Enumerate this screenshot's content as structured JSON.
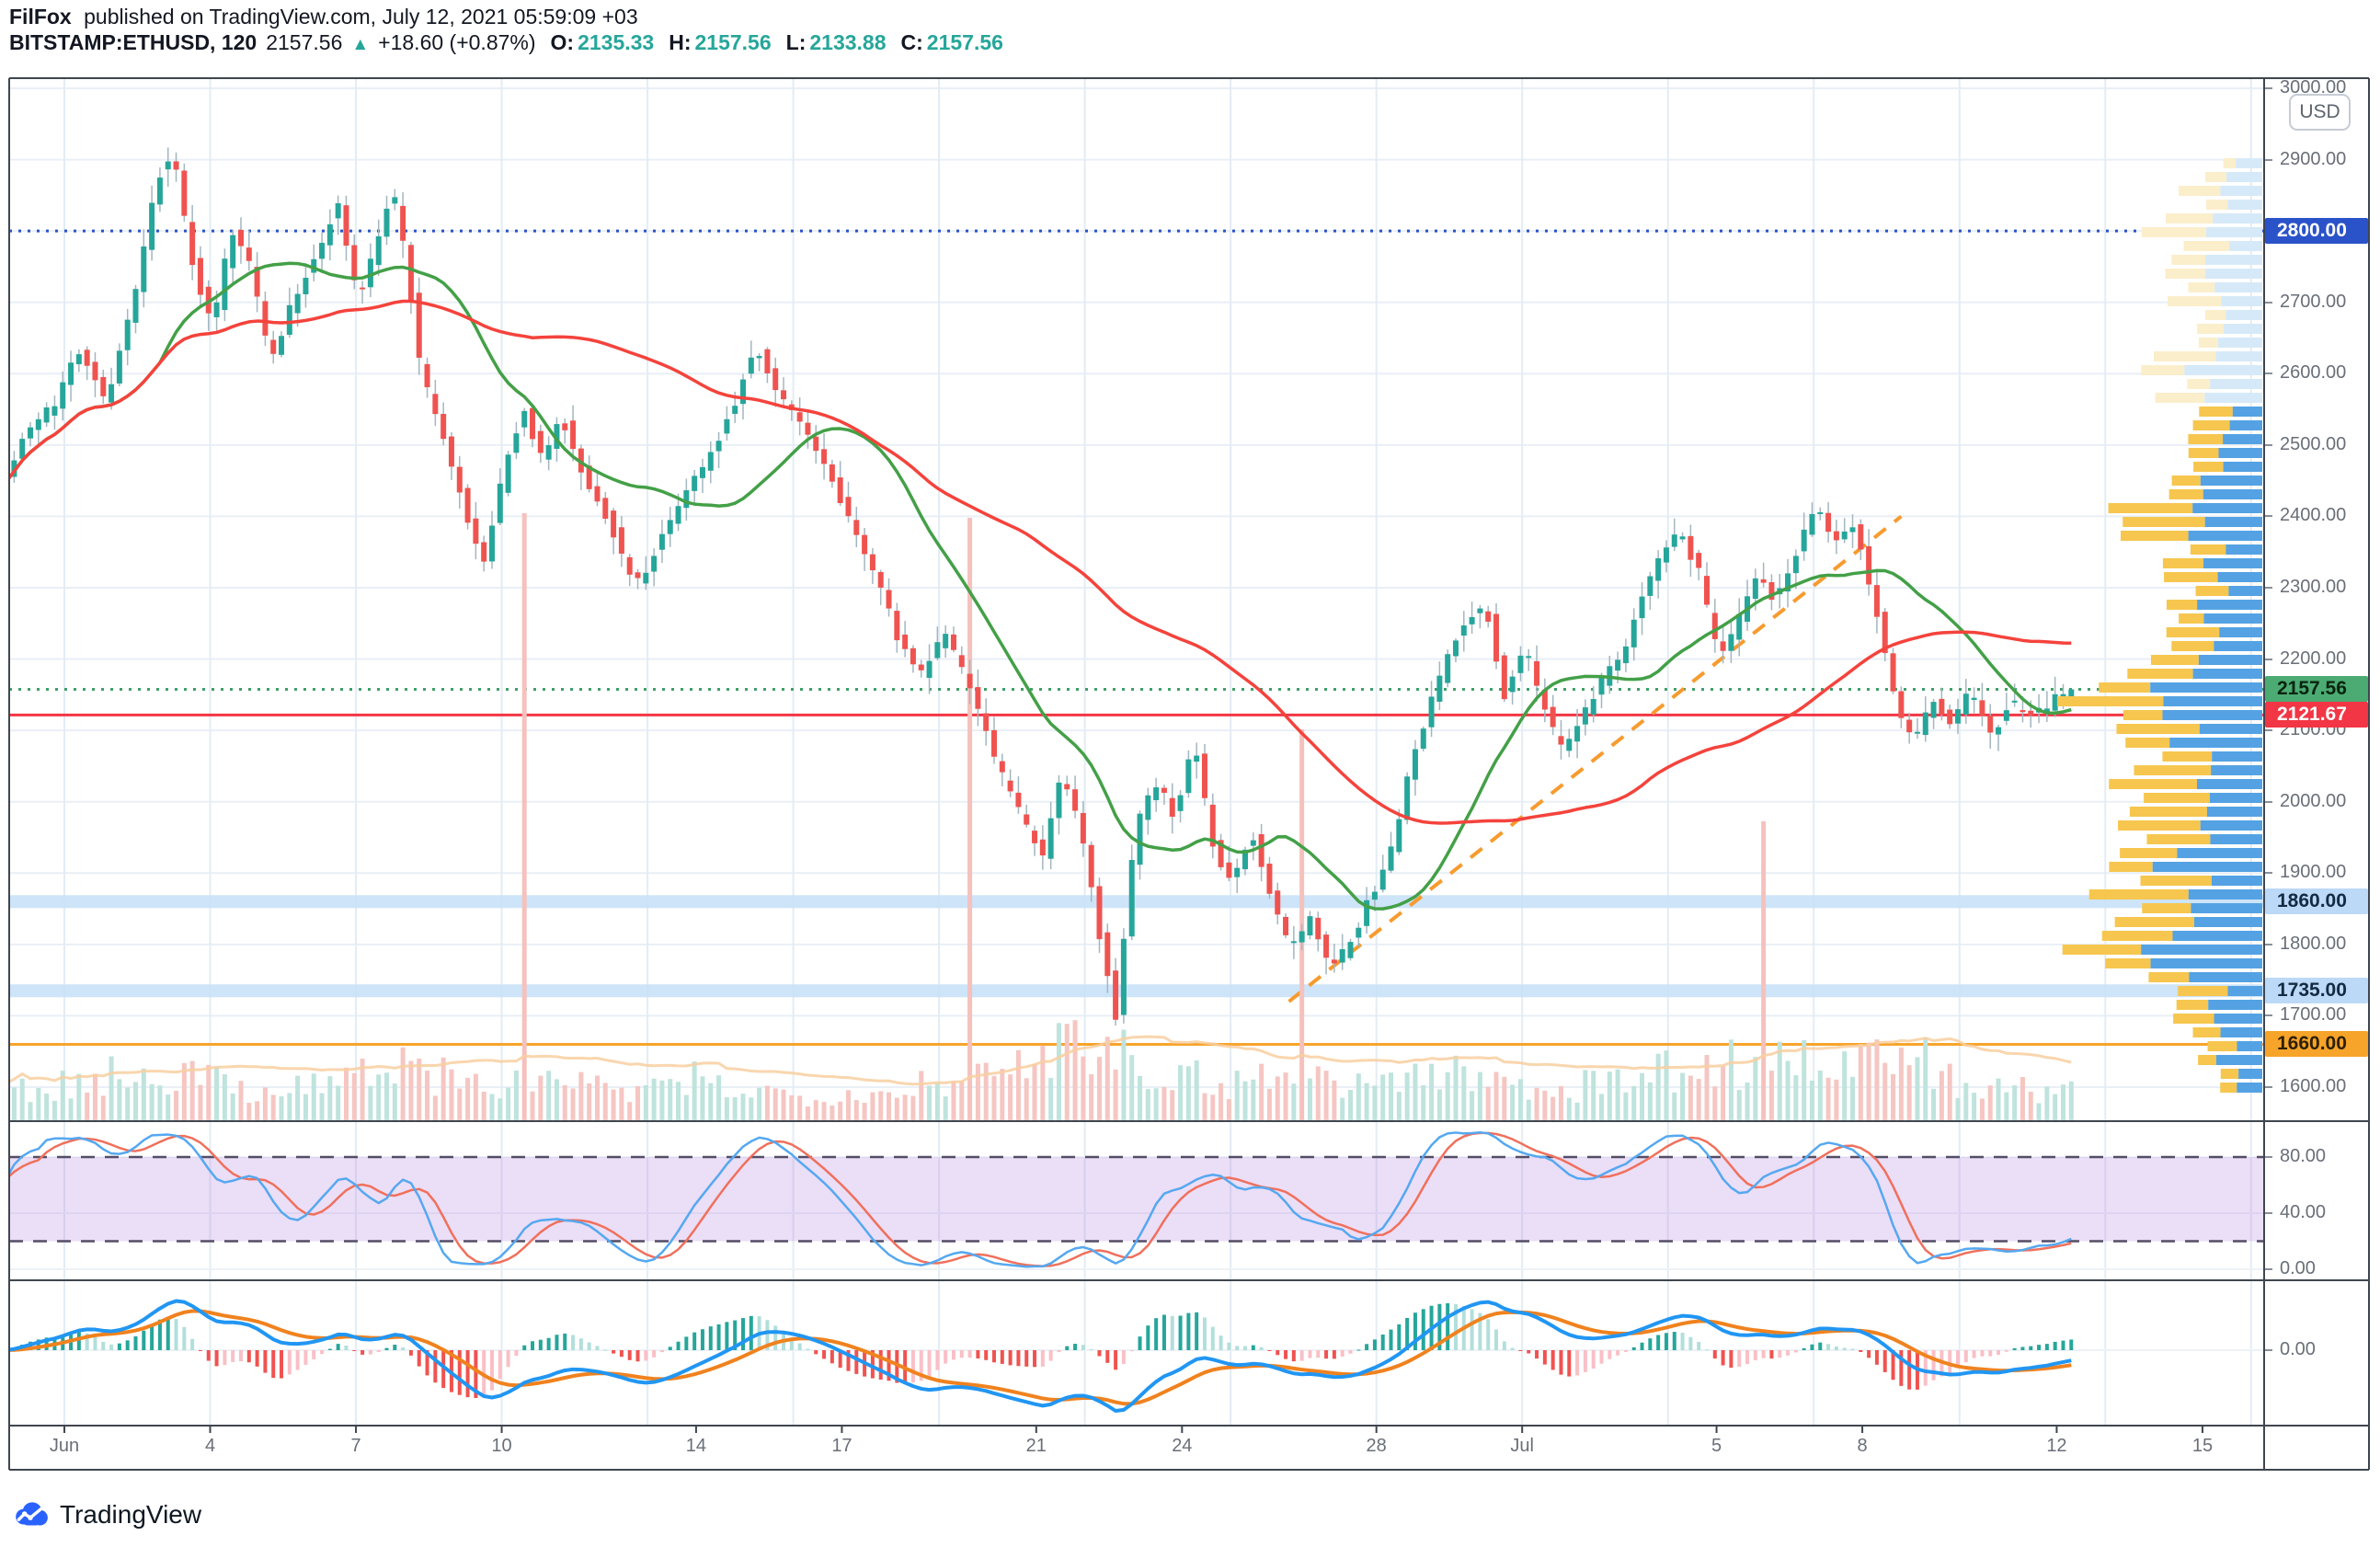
{
  "header": {
    "author": "FilFox",
    "published": "published on TradingView.com, July 12, 2021 05:59:09 +03",
    "symbol": "BITSTAMP:ETHUSD, 120",
    "last_price": "2157.56",
    "arrow": "▲",
    "change": "+18.60 (+0.87%)",
    "o_label": "O:",
    "open": "2135.33",
    "h_label": "H:",
    "high": "2157.56",
    "l_label": "L:",
    "low": "2133.88",
    "c_label": "C:",
    "close": "2157.56"
  },
  "footer": {
    "brand": "TradingView"
  },
  "chart_data": {
    "type": "candlestick",
    "symbol": "BITSTAMP:ETHUSD",
    "interval_minutes": 120,
    "last_bar": {
      "open": 2135.33,
      "high": 2157.56,
      "low": 2133.88,
      "close": 2157.56,
      "change": 18.6,
      "change_pct": 0.87
    },
    "bars_per_day": 6,
    "day_range": [
      -1.2,
      41.3
    ],
    "price_path": [
      [
        -1.2,
        2430
      ],
      [
        -0.6,
        2520
      ],
      [
        0,
        2560
      ],
      [
        0.5,
        2640
      ],
      [
        1.0,
        2560
      ],
      [
        1.6,
        2700
      ],
      [
        2.1,
        2880
      ],
      [
        2.4,
        2905
      ],
      [
        2.8,
        2760
      ],
      [
        3.2,
        2660
      ],
      [
        3.6,
        2800
      ],
      [
        4.0,
        2750
      ],
      [
        4.4,
        2620
      ],
      [
        4.8,
        2690
      ],
      [
        5.3,
        2760
      ],
      [
        5.8,
        2840
      ],
      [
        6.2,
        2700
      ],
      [
        6.6,
        2780
      ],
      [
        6.9,
        2865
      ],
      [
        7.2,
        2760
      ],
      [
        7.5,
        2600
      ],
      [
        8.0,
        2500
      ],
      [
        8.4,
        2410
      ],
      [
        8.8,
        2330
      ],
      [
        9.2,
        2460
      ],
      [
        9.6,
        2550
      ],
      [
        10.0,
        2480
      ],
      [
        10.4,
        2540
      ],
      [
        10.9,
        2450
      ],
      [
        11.4,
        2390
      ],
      [
        11.9,
        2300
      ],
      [
        12.4,
        2360
      ],
      [
        12.9,
        2430
      ],
      [
        13.4,
        2480
      ],
      [
        13.9,
        2550
      ],
      [
        14.4,
        2640
      ],
      [
        14.8,
        2580
      ],
      [
        15.3,
        2530
      ],
      [
        15.8,
        2470
      ],
      [
        16.3,
        2400
      ],
      [
        16.8,
        2330
      ],
      [
        17.3,
        2230
      ],
      [
        17.8,
        2180
      ],
      [
        18.3,
        2240
      ],
      [
        18.8,
        2160
      ],
      [
        19.3,
        2060
      ],
      [
        19.8,
        1990
      ],
      [
        20.3,
        1920
      ],
      [
        20.7,
        2040
      ],
      [
        21.1,
        1950
      ],
      [
        21.5,
        1800
      ],
      [
        21.8,
        1700
      ],
      [
        22.2,
        1960
      ],
      [
        22.6,
        2030
      ],
      [
        23.0,
        1980
      ],
      [
        23.4,
        2090
      ],
      [
        23.8,
        1940
      ],
      [
        24.2,
        1880
      ],
      [
        24.6,
        1960
      ],
      [
        25.0,
        1860
      ],
      [
        25.4,
        1790
      ],
      [
        25.8,
        1840
      ],
      [
        26.2,
        1760
      ],
      [
        26.6,
        1800
      ],
      [
        27.0,
        1860
      ],
      [
        27.4,
        1910
      ],
      [
        27.8,
        2030
      ],
      [
        28.2,
        2120
      ],
      [
        28.6,
        2200
      ],
      [
        29.0,
        2250
      ],
      [
        29.4,
        2280
      ],
      [
        29.8,
        2150
      ],
      [
        30.2,
        2220
      ],
      [
        30.6,
        2130
      ],
      [
        31.0,
        2070
      ],
      [
        31.4,
        2120
      ],
      [
        31.8,
        2170
      ],
      [
        32.2,
        2200
      ],
      [
        32.6,
        2290
      ],
      [
        33.0,
        2340
      ],
      [
        33.4,
        2385
      ],
      [
        33.8,
        2320
      ],
      [
        34.2,
        2200
      ],
      [
        34.6,
        2250
      ],
      [
        35.0,
        2320
      ],
      [
        35.4,
        2280
      ],
      [
        35.8,
        2350
      ],
      [
        36.2,
        2415
      ],
      [
        36.6,
        2370
      ],
      [
        37.0,
        2390
      ],
      [
        37.4,
        2280
      ],
      [
        37.8,
        2150
      ],
      [
        38.2,
        2080
      ],
      [
        38.6,
        2140
      ],
      [
        39.0,
        2110
      ],
      [
        39.4,
        2160
      ],
      [
        39.8,
        2090
      ],
      [
        40.2,
        2140
      ],
      [
        40.6,
        2120
      ],
      [
        41.0,
        2135
      ],
      [
        41.3,
        2157.56
      ]
    ],
    "levels": [
      {
        "value": "2800.00",
        "price": 2800,
        "style": "dotted",
        "color": "#2a52c9",
        "badge_bg": "#2a52c9",
        "badge_fg": "#ffffff"
      },
      {
        "value": "2157.56",
        "price": 2157.56,
        "style": "dotted",
        "color": "#3fa06a",
        "badge_bg": "#4cab73",
        "badge_fg": "#07240f"
      },
      {
        "value": "2121.67",
        "price": 2121.67,
        "style": "solid",
        "color": "#f23645",
        "badge_bg": "#f23645",
        "badge_fg": "#ffffff"
      },
      {
        "value": "1860.00",
        "price": 1860,
        "style": "band",
        "color": "#c9e1f7",
        "badge_bg": "#bcd9f7",
        "badge_fg": "#132a42"
      },
      {
        "value": "1735.00",
        "price": 1735,
        "style": "band",
        "color": "#c9e1f7",
        "badge_bg": "#bcd9f7",
        "badge_fg": "#132a42"
      },
      {
        "value": "1660.00",
        "price": 1660,
        "style": "solid",
        "color": "#f7a42b",
        "badge_bg": "#f7a42b",
        "badge_fg": "#2e2000"
      }
    ],
    "trendline": {
      "from_day": 25.2,
      "from_price": 1720,
      "to_day": 37.8,
      "to_price": 2400,
      "color": "#f79b2e",
      "style": "dashed"
    },
    "moving_averages": [
      {
        "name": "fast-ma",
        "period_bars": 20,
        "color": "#43a047"
      },
      {
        "name": "slow-ma",
        "period_bars": 66,
        "color": "#f4433c"
      }
    ],
    "volume_envelope": [
      [
        -1.2,
        30
      ],
      [
        0,
        40
      ],
      [
        1,
        50
      ],
      [
        2,
        55
      ],
      [
        3,
        45
      ],
      [
        4,
        35
      ],
      [
        5,
        40
      ],
      [
        6,
        50
      ],
      [
        7,
        60
      ],
      [
        8,
        45
      ],
      [
        9,
        35
      ],
      [
        10,
        50
      ],
      [
        11,
        35
      ],
      [
        12,
        30
      ],
      [
        13,
        45
      ],
      [
        14,
        35
      ],
      [
        15,
        28
      ],
      [
        16,
        32
      ],
      [
        17,
        30
      ],
      [
        18,
        50
      ],
      [
        19,
        45
      ],
      [
        20,
        70
      ],
      [
        20.7,
        100
      ],
      [
        21.5,
        95
      ],
      [
        22,
        65
      ],
      [
        23,
        50
      ],
      [
        24,
        42
      ],
      [
        25,
        55
      ],
      [
        26,
        48
      ],
      [
        27,
        40
      ],
      [
        28,
        55
      ],
      [
        29,
        48
      ],
      [
        30,
        40
      ],
      [
        31,
        36
      ],
      [
        32,
        46
      ],
      [
        33,
        55
      ],
      [
        34,
        60
      ],
      [
        35,
        70
      ],
      [
        36,
        65
      ],
      [
        37,
        60
      ],
      [
        38,
        75
      ],
      [
        38.5,
        55
      ],
      [
        39,
        40
      ],
      [
        40,
        34
      ],
      [
        41,
        30
      ]
    ],
    "volume_spikes": [
      [
        9.45,
        660
      ],
      [
        18.6,
        655
      ],
      [
        25.45,
        425
      ],
      [
        35.0,
        325
      ]
    ],
    "volume_colors": {
      "up": "#bfe3dd",
      "down": "#f5c6c2",
      "ma": "#f8cfa0"
    },
    "volume_profile": {
      "yellow": "#f6c64f",
      "blue": "#54a2e3",
      "pale_yellow": "#fbeecb",
      "pale_blue": "#d6e9f8",
      "pale_above_price": 2560,
      "envelope": [
        [
          3010,
          6
        ],
        [
          2950,
          22
        ],
        [
          2900,
          45
        ],
        [
          2860,
          70
        ],
        [
          2820,
          90
        ],
        [
          2780,
          115
        ],
        [
          2750,
          125
        ],
        [
          2720,
          100
        ],
        [
          2690,
          80
        ],
        [
          2660,
          72
        ],
        [
          2630,
          95
        ],
        [
          2600,
          120
        ],
        [
          2570,
          105
        ],
        [
          2540,
          90
        ],
        [
          2510,
          80
        ],
        [
          2480,
          78
        ],
        [
          2450,
          95
        ],
        [
          2420,
          130
        ],
        [
          2400,
          150
        ],
        [
          2380,
          135
        ],
        [
          2350,
          105
        ],
        [
          2320,
          88
        ],
        [
          2290,
          92
        ],
        [
          2260,
          95
        ],
        [
          2230,
          105
        ],
        [
          2200,
          118
        ],
        [
          2180,
          140
        ],
        [
          2160,
          175
        ],
        [
          2140,
          195
        ],
        [
          2120,
          205
        ],
        [
          2100,
          160
        ],
        [
          2080,
          140
        ],
        [
          2060,
          128
        ],
        [
          2040,
          122
        ],
        [
          2020,
          138
        ],
        [
          2000,
          158
        ],
        [
          1980,
          140
        ],
        [
          1960,
          148
        ],
        [
          1940,
          165
        ],
        [
          1920,
          172
        ],
        [
          1900,
          158
        ],
        [
          1880,
          150
        ],
        [
          1860,
          170
        ],
        [
          1840,
          162
        ],
        [
          1820,
          158
        ],
        [
          1800,
          182
        ],
        [
          1780,
          170
        ],
        [
          1760,
          148
        ],
        [
          1740,
          120
        ],
        [
          1720,
          98
        ],
        [
          1700,
          88
        ],
        [
          1680,
          105
        ],
        [
          1660,
          82
        ],
        [
          1640,
          64
        ],
        [
          1620,
          52
        ],
        [
          1600,
          40
        ],
        [
          1570,
          25
        ]
      ]
    },
    "stochastic": {
      "k_period": 28,
      "k_smooth": 5,
      "d_smooth": 5,
      "upper": 80,
      "lower": 20,
      "k_color": "#55a8f0",
      "d_color": "#f0705c",
      "band_color": "#b07ae0",
      "level_line_color": "#544d66",
      "ticks": [
        "80.00",
        "40.00",
        "0.00"
      ],
      "tick_values": [
        80,
        40,
        0
      ]
    },
    "macd": {
      "fast": 12,
      "slow": 26,
      "signal": 9,
      "macd_color": "#2196f3",
      "signal_color": "#f0821e",
      "hist_up": "#26a69a",
      "hist_up_fade": "#b2dfdb",
      "hist_down": "#ef5350",
      "hist_down_fade": "#f9c0c6",
      "ticks": [
        "0.00"
      ],
      "tick_values": [
        0
      ]
    },
    "y_axis": {
      "currency": "USD",
      "min": 1560,
      "max": 3014,
      "ticks": [
        "3000.00",
        "2900.00",
        "2800.00",
        "2700.00",
        "2600.00",
        "2500.00",
        "2400.00",
        "2300.00",
        "2200.00",
        "2100.00",
        "2000.00",
        "1900.00",
        "1800.00",
        "1700.00",
        "1600.00"
      ],
      "tick_prices": [
        3000,
        2900,
        2800,
        2700,
        2600,
        2500,
        2400,
        2300,
        2200,
        2100,
        2000,
        1900,
        1800,
        1700,
        1600
      ]
    },
    "x_axis": {
      "labels": [
        {
          "label": "Jun",
          "day": 0
        },
        {
          "label": "4",
          "day": 3
        },
        {
          "label": "7",
          "day": 6
        },
        {
          "label": "10",
          "day": 9
        },
        {
          "label": "14",
          "day": 13
        },
        {
          "label": "17",
          "day": 16
        },
        {
          "label": "21",
          "day": 20
        },
        {
          "label": "24",
          "day": 23
        },
        {
          "label": "28",
          "day": 27
        },
        {
          "label": "Jul",
          "day": 30
        },
        {
          "label": "5",
          "day": 34
        },
        {
          "label": "8",
          "day": 37
        },
        {
          "label": "12",
          "day": 41
        },
        {
          "label": "15",
          "day": 44
        }
      ],
      "grid_every_days": 3
    },
    "candle_colors": {
      "up": "#26a69a",
      "down": "#ef5350",
      "wick": "#a3b6bf"
    }
  }
}
